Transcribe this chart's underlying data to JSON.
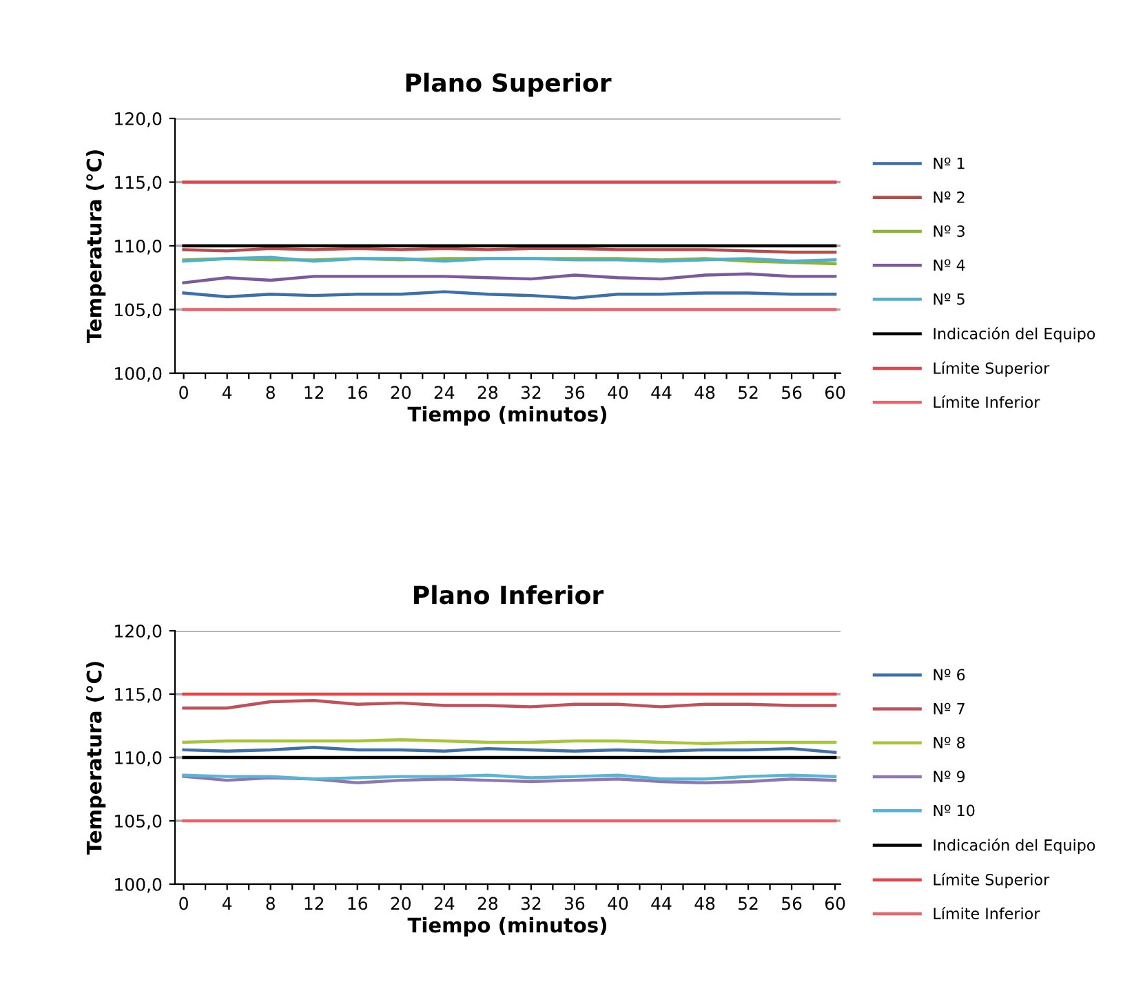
{
  "chart_data": [
    {
      "type": "line",
      "title": "Plano Superior",
      "xlabel": "Tiempo (minutos)",
      "ylabel": "Temperatura (°C)",
      "x": [
        0,
        4,
        8,
        12,
        16,
        20,
        24,
        28,
        32,
        36,
        40,
        44,
        48,
        52,
        56,
        60
      ],
      "series": [
        {
          "name": "Nº 1",
          "color": "#3d6fa8",
          "values": [
            106.3,
            106.0,
            106.2,
            106.1,
            106.2,
            106.2,
            106.4,
            106.2,
            106.1,
            105.9,
            106.2,
            106.2,
            106.3,
            106.3,
            106.2,
            106.2
          ]
        },
        {
          "name": "Nº 2",
          "color": "#b84a4a",
          "values": [
            109.7,
            109.6,
            109.8,
            109.7,
            109.8,
            109.7,
            109.8,
            109.7,
            109.8,
            109.8,
            109.7,
            109.7,
            109.7,
            109.6,
            109.5,
            109.5
          ]
        },
        {
          "name": "Nº 3",
          "color": "#8fb339",
          "values": [
            108.9,
            109.0,
            108.9,
            108.9,
            109.0,
            108.9,
            109.0,
            109.0,
            109.0,
            109.0,
            109.0,
            108.9,
            109.0,
            108.8,
            108.7,
            108.6
          ]
        },
        {
          "name": "Nº 4",
          "color": "#7a5a9a",
          "values": [
            107.1,
            107.5,
            107.3,
            107.6,
            107.6,
            107.6,
            107.6,
            107.5,
            107.4,
            107.7,
            107.5,
            107.4,
            107.7,
            107.8,
            107.6,
            107.6
          ]
        },
        {
          "name": "Nº 5",
          "color": "#4fb0cc",
          "values": [
            108.8,
            109.0,
            109.1,
            108.8,
            109.0,
            109.0,
            108.8,
            109.0,
            109.0,
            108.9,
            108.9,
            108.8,
            108.9,
            109.0,
            108.8,
            108.9
          ]
        },
        {
          "name": "Indicación del Equipo",
          "color": "#000000",
          "values": [
            110,
            110,
            110,
            110,
            110,
            110,
            110,
            110,
            110,
            110,
            110,
            110,
            110,
            110,
            110,
            110
          ]
        },
        {
          "name": "Límite Superior",
          "color": "#e0474c",
          "values": [
            115,
            115,
            115,
            115,
            115,
            115,
            115,
            115,
            115,
            115,
            115,
            115,
            115,
            115,
            115,
            115
          ]
        },
        {
          "name": "Límite Inferior",
          "color": "#e8636a",
          "values": [
            105,
            105,
            105,
            105,
            105,
            105,
            105,
            105,
            105,
            105,
            105,
            105,
            105,
            105,
            105,
            105
          ]
        }
      ],
      "xlim": [
        -0.8,
        60.5
      ],
      "xticks": [
        0,
        {
          "value": 2,
          "label": null
        },
        4,
        {
          "value": 6,
          "label": null
        },
        8,
        {
          "value": 10,
          "label": null
        },
        12,
        {
          "value": 14,
          "label": null
        },
        16,
        {
          "value": 18,
          "label": null
        },
        20,
        {
          "value": 22,
          "label": null
        },
        24,
        {
          "value": 26,
          "label": null
        },
        28,
        {
          "value": 30,
          "label": null
        },
        32,
        {
          "value": 34,
          "label": null
        },
        36,
        {
          "value": 38,
          "label": null
        },
        40,
        {
          "value": 42,
          "label": null
        },
        44,
        {
          "value": 46,
          "label": null
        },
        48,
        {
          "value": 50,
          "label": null
        },
        52,
        {
          "value": 54,
          "label": null
        },
        56,
        {
          "value": 58,
          "label": null
        },
        60
      ],
      "ylim": [
        100,
        120
      ],
      "yticks": [
        {
          "value": 100,
          "label": "100,0"
        },
        {
          "value": 105,
          "label": "105,0"
        },
        {
          "value": 110,
          "label": "110,0"
        },
        {
          "value": 115,
          "label": "115,0"
        },
        {
          "value": 120,
          "label": "120,0"
        }
      ],
      "grid": "y",
      "legend": "right"
    },
    {
      "type": "line",
      "title": "Plano Inferior",
      "xlabel": "Tiempo (minutos)",
      "ylabel": "Temperatura (°C)",
      "x": [
        0,
        4,
        8,
        12,
        16,
        20,
        24,
        28,
        32,
        36,
        40,
        44,
        48,
        52,
        56,
        60
      ],
      "series": [
        {
          "name": "Nº 6",
          "color": "#3d6fa8",
          "values": [
            110.6,
            110.5,
            110.6,
            110.8,
            110.6,
            110.6,
            110.5,
            110.7,
            110.6,
            110.5,
            110.6,
            110.5,
            110.6,
            110.6,
            110.7,
            110.4
          ]
        },
        {
          "name": "Nº 7",
          "color": "#c0505a",
          "values": [
            113.9,
            113.9,
            114.4,
            114.5,
            114.2,
            114.3,
            114.1,
            114.1,
            114.0,
            114.2,
            114.2,
            114.0,
            114.2,
            114.2,
            114.1,
            114.1
          ]
        },
        {
          "name": "Nº 8",
          "color": "#a8c43c",
          "values": [
            111.2,
            111.3,
            111.3,
            111.3,
            111.3,
            111.4,
            111.3,
            111.2,
            111.2,
            111.3,
            111.3,
            111.2,
            111.1,
            111.2,
            111.2,
            111.2
          ]
        },
        {
          "name": "Nº 9",
          "color": "#8f78b0",
          "values": [
            108.5,
            108.2,
            108.4,
            108.3,
            108.0,
            108.2,
            108.3,
            108.2,
            108.1,
            108.2,
            108.3,
            108.1,
            108.0,
            108.1,
            108.3,
            108.2
          ]
        },
        {
          "name": "Nº 10",
          "color": "#5ab4d4",
          "values": [
            108.6,
            108.5,
            108.5,
            108.3,
            108.4,
            108.5,
            108.5,
            108.6,
            108.4,
            108.5,
            108.6,
            108.3,
            108.3,
            108.5,
            108.6,
            108.5
          ]
        },
        {
          "name": "Indicación del Equipo",
          "color": "#000000",
          "values": [
            110,
            110,
            110,
            110,
            110,
            110,
            110,
            110,
            110,
            110,
            110,
            110,
            110,
            110,
            110,
            110
          ]
        },
        {
          "name": "Límite Superior",
          "color": "#e0474c",
          "values": [
            115,
            115,
            115,
            115,
            115,
            115,
            115,
            115,
            115,
            115,
            115,
            115,
            115,
            115,
            115,
            115
          ]
        },
        {
          "name": "Límite Inferior",
          "color": "#e8636a",
          "values": [
            105,
            105,
            105,
            105,
            105,
            105,
            105,
            105,
            105,
            105,
            105,
            105,
            105,
            105,
            105,
            105
          ]
        }
      ],
      "xlim": [
        -0.8,
        60.5
      ],
      "xticks": [
        0,
        {
          "value": 2,
          "label": null
        },
        4,
        {
          "value": 6,
          "label": null
        },
        8,
        {
          "value": 10,
          "label": null
        },
        12,
        {
          "value": 14,
          "label": null
        },
        16,
        {
          "value": 18,
          "label": null
        },
        20,
        {
          "value": 22,
          "label": null
        },
        24,
        {
          "value": 26,
          "label": null
        },
        28,
        {
          "value": 30,
          "label": null
        },
        32,
        {
          "value": 34,
          "label": null
        },
        36,
        {
          "value": 38,
          "label": null
        },
        40,
        {
          "value": 42,
          "label": null
        },
        44,
        {
          "value": 46,
          "label": null
        },
        48,
        {
          "value": 50,
          "label": null
        },
        52,
        {
          "value": 54,
          "label": null
        },
        56,
        {
          "value": 58,
          "label": null
        },
        60
      ],
      "ylim": [
        100,
        120
      ],
      "yticks": [
        {
          "value": 100,
          "label": "100,0"
        },
        {
          "value": 105,
          "label": "105,0"
        },
        {
          "value": 110,
          "label": "110,0"
        },
        {
          "value": 115,
          "label": "115,0"
        },
        {
          "value": 120,
          "label": "120,0"
        }
      ],
      "grid": "y",
      "legend": "right"
    }
  ]
}
